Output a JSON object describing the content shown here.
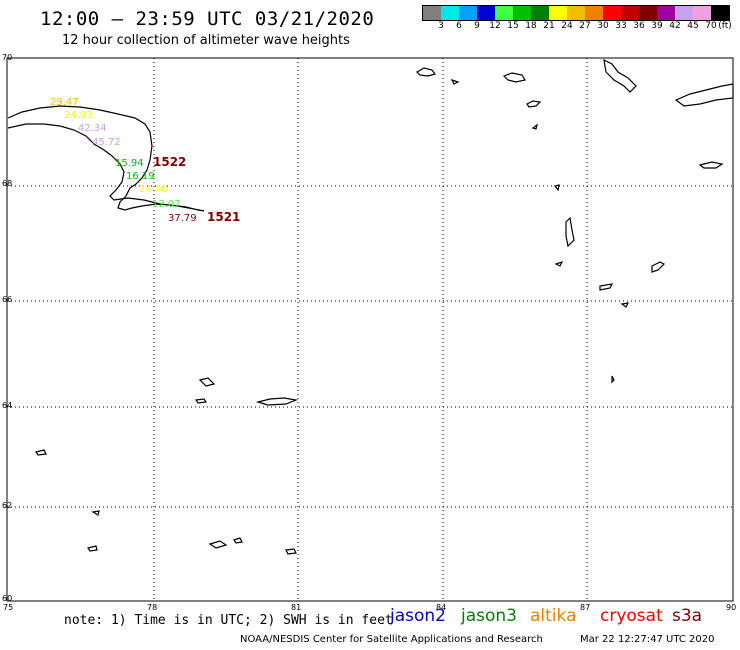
{
  "title": "12:00 – 23:59 UTC 03/21/2020",
  "subtitle": "12 hour collection of altimeter wave heights",
  "colorbar": {
    "colors": [
      "#808080",
      "#00e8e8",
      "#00a0ff",
      "#0000d0",
      "#40ff40",
      "#00c000",
      "#008000",
      "#ffff00",
      "#f0c000",
      "#f08000",
      "#ff0000",
      "#c00000",
      "#800000",
      "#a000a0",
      "#c8a0f0",
      "#f0a0e0",
      "#000000"
    ],
    "labels": [
      "3",
      "6",
      "9",
      "12",
      "15",
      "18",
      "21",
      "24",
      "27",
      "30",
      "33",
      "36",
      "39",
      "42",
      "45",
      "70"
    ],
    "unit": "(ft)"
  },
  "map": {
    "lat_ticks": [
      "70",
      "68",
      "66",
      "64",
      "62",
      "60"
    ],
    "lon_ticks": [
      "75",
      "78",
      "81",
      "84",
      "87",
      "90"
    ],
    "hour_labels": [
      {
        "text": "1522",
        "color": "#800000"
      },
      {
        "text": "1521",
        "color": "#800000"
      }
    ],
    "wave_labels": [
      {
        "text": "29.47",
        "color": "#f0c000"
      },
      {
        "text": "24.93",
        "color": "#ffff00"
      },
      {
        "text": "42.34",
        "color": "#c8a0f0"
      },
      {
        "text": "45.72",
        "color": "#c8a0f0"
      },
      {
        "text": "15.94",
        "color": "#00c000"
      },
      {
        "text": "16.19",
        "color": "#00c000"
      },
      {
        "text": "24.00",
        "color": "#ffff00"
      },
      {
        "text": "12.07",
        "color": "#40ff40"
      },
      {
        "text": "37.79",
        "color": "#800000"
      }
    ]
  },
  "note": "note: 1) Time is in UTC; 2) SWH is in feet",
  "missions": [
    {
      "name": "jason2",
      "color": "#0000d0"
    },
    {
      "name": "jason3",
      "color": "#008000"
    },
    {
      "name": "altika",
      "color": "#f08000"
    },
    {
      "name": "cryosat",
      "color": "#ff0000"
    },
    {
      "name": "s3a",
      "color": "#800000"
    }
  ],
  "footer": "NOAA/NESDIS Center for Satellite Applications and Research",
  "footer_timestamp": "Mar 22 12:27:47 UTC 2020"
}
